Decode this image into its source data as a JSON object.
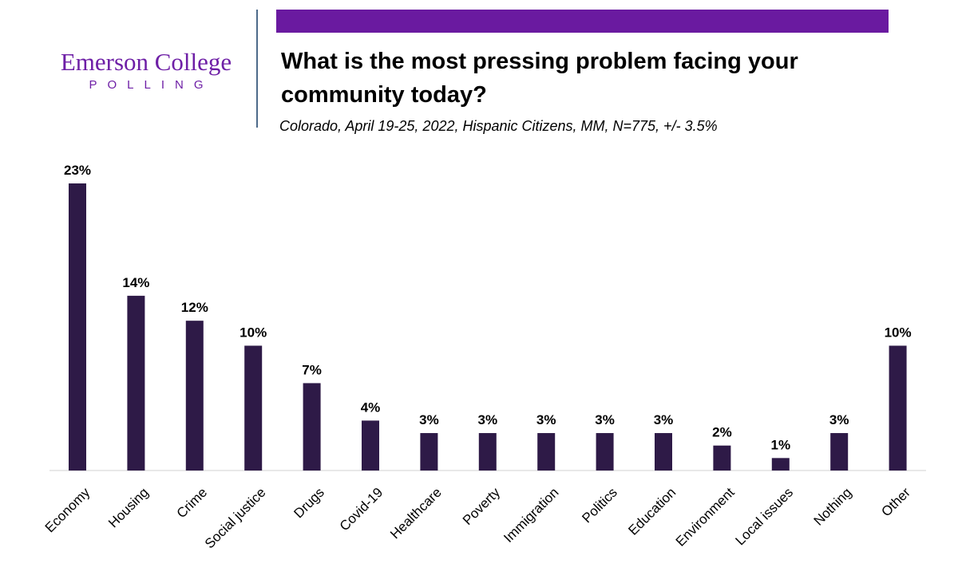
{
  "logo": {
    "name": "Emerson College",
    "sub": "POLLING"
  },
  "colors": {
    "accent": "#6a1aa0",
    "bar": "#2e1a47",
    "axis": "#d0d0d0"
  },
  "chart_data": {
    "type": "bar",
    "title": "What is the most pressing problem facing your community today?",
    "subtitle": "Colorado, April 19-25, 2022, Hispanic Citizens, MM, N=775, +/- 3.5%",
    "categories": [
      "Economy",
      "Housing",
      "Crime",
      "Social justice",
      "Drugs",
      "Covid-19",
      "Healthcare",
      "Poverty",
      "Immigration",
      "Politics",
      "Education",
      "Environment",
      "Local issues",
      "Nothing",
      "Other"
    ],
    "values": [
      23,
      14,
      12,
      10,
      7,
      4,
      3,
      3,
      3,
      3,
      3,
      2,
      1,
      3,
      10
    ],
    "data_labels": [
      "23%",
      "14%",
      "12%",
      "10%",
      "7%",
      "4%",
      "3%",
      "3%",
      "3%",
      "3%",
      "3%",
      "2%",
      "1%",
      "3%",
      "10%"
    ],
    "xlabel": "",
    "ylabel": "",
    "ylim": [
      0,
      23
    ],
    "grid": false,
    "legend": "none"
  }
}
